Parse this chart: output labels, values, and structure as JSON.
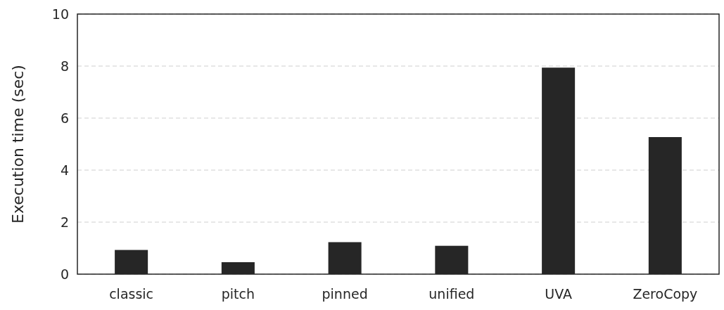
{
  "chart_data": {
    "type": "bar",
    "ylabel": "Execution time (sec)",
    "categories": [
      "classic",
      "pitch",
      "pinned",
      "unified",
      "UVA",
      "ZeroCopy"
    ],
    "values": [
      0.93,
      0.46,
      1.23,
      1.09,
      7.94,
      5.27
    ],
    "color": "#262626",
    "ylim": [
      0,
      10
    ],
    "yticks": [
      0,
      2,
      4,
      6,
      8,
      10
    ],
    "grid": "y"
  }
}
